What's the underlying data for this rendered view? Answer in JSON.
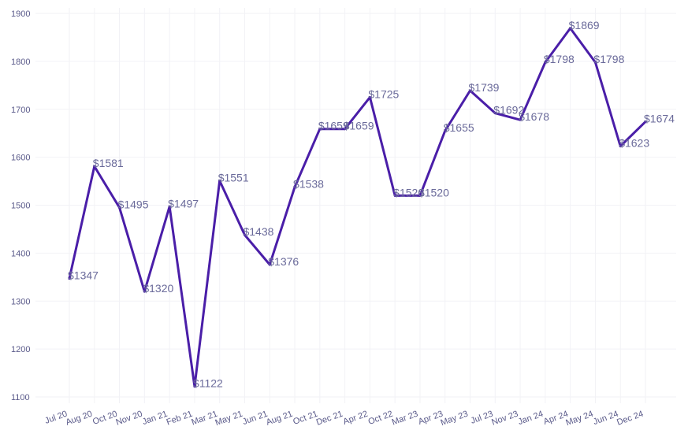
{
  "chart_data": {
    "type": "line",
    "title": "",
    "xlabel": "",
    "ylabel": "",
    "categories": [
      "Jul 20",
      "Aug 20",
      "Oct 20",
      "Nov 20",
      "Jan 21",
      "Feb 21",
      "Mar 21",
      "May 21",
      "Jun 21",
      "Aug 21",
      "Oct 21",
      "Dec 21",
      "Apr 22",
      "Oct 22",
      "Mar 23",
      "Apr 23",
      "May 23",
      "Jul 23",
      "Nov 23",
      "Jan 24",
      "Apr 24",
      "May 24",
      "Jun 24",
      "Dec 24"
    ],
    "series": [
      {
        "values": [
          1347,
          1581,
          1495,
          1320,
          1497,
          1122,
          1551,
          1438,
          1376,
          1538,
          1659,
          1659,
          1725,
          1520,
          1520,
          1655,
          1739,
          1692,
          1678,
          1798,
          1869,
          1798,
          1623,
          1674
        ],
        "labels": [
          "$1347",
          "$1581",
          "$1495",
          "$1320",
          "$1497",
          "$1122",
          "$1551",
          "$1438",
          "$1376",
          "$1538",
          "$1659",
          "$1659",
          "$1725",
          "$1520",
          "$1520",
          "$1655",
          "$1739",
          "$1692",
          "$1678",
          "$1798",
          "$1869",
          "$1798",
          "$1623",
          "$1674"
        ],
        "color": "#4a1ea8"
      }
    ],
    "ylim": [
      1100,
      1900
    ],
    "yticks": [
      1100,
      1200,
      1300,
      1400,
      1500,
      1600,
      1700,
      1800,
      1900
    ],
    "grid": true,
    "legend": "none"
  }
}
